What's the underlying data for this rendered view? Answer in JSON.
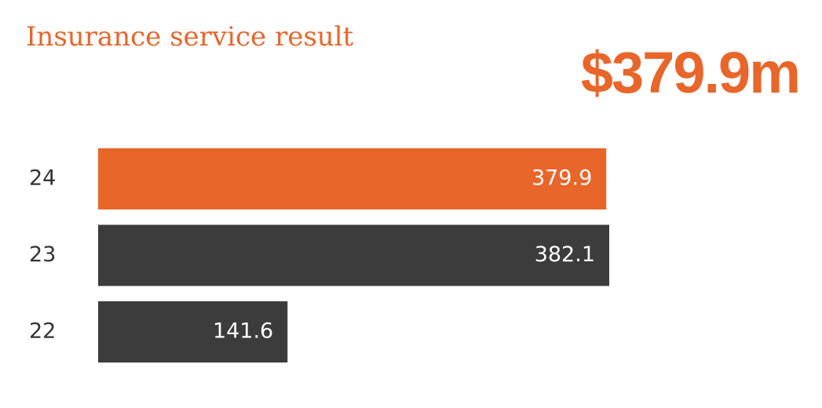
{
  "chart_data": {
    "type": "hbar",
    "title": "Insurance service result",
    "headline": "$379.9m",
    "categories": [
      "24",
      "23",
      "22"
    ],
    "values": [
      379.9,
      382.1,
      141.6
    ],
    "colors": [
      "#e8662a",
      "#3c3c3c",
      "#3c3c3c"
    ],
    "title_color": "#e8662a"
  }
}
